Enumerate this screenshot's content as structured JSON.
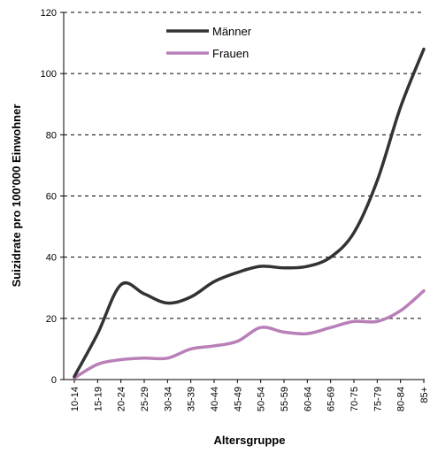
{
  "chart_data": {
    "type": "line",
    "xlabel": "Altersgruppe",
    "ylabel": "Suizidrate pro 100'000 Einwohner",
    "ylim": [
      0,
      120
    ],
    "yticks": [
      0,
      20,
      40,
      60,
      80,
      100,
      120
    ],
    "grid": "horizontal dashed",
    "legend": "top-center",
    "categories": [
      "10-14",
      "15-19",
      "20-24",
      "25-29",
      "30-34",
      "35-39",
      "40-44",
      "45-49",
      "50-54",
      "55-59",
      "60-64",
      "65-69",
      "70-75",
      "75-79",
      "80-84",
      "85+"
    ],
    "series": [
      {
        "name": "Männer",
        "color": "#333333",
        "values": [
          1,
          15,
          31,
          28,
          25,
          27,
          32,
          35,
          37,
          36.5,
          37,
          40,
          48,
          65,
          89,
          108
        ]
      },
      {
        "name": "Frauen",
        "color": "#b87fb8",
        "values": [
          0.5,
          5,
          6.5,
          7,
          7,
          10,
          11,
          12.5,
          17,
          15.5,
          15,
          17,
          19,
          19,
          22.5,
          29
        ]
      }
    ]
  }
}
